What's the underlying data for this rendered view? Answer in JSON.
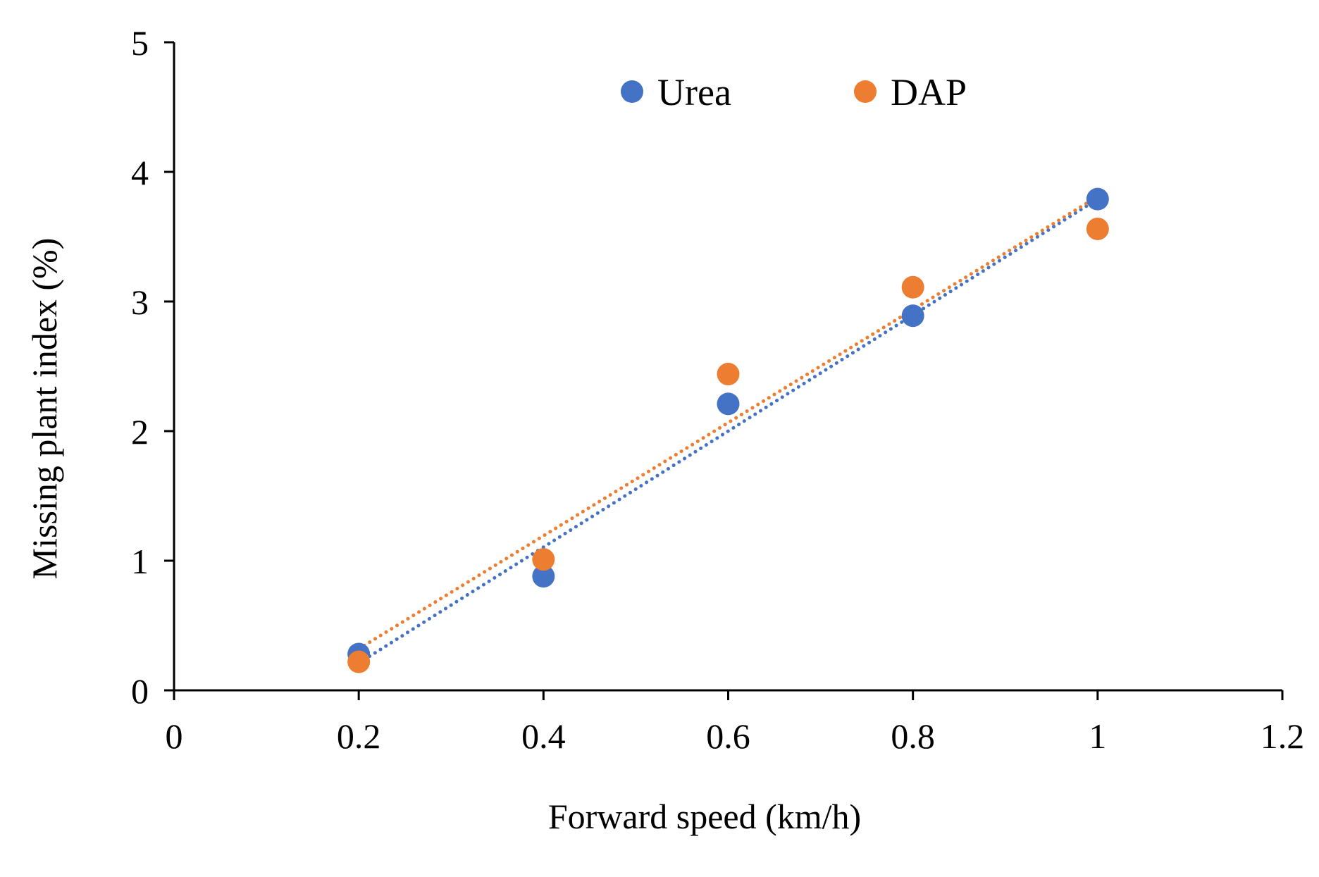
{
  "chart_data": {
    "type": "scatter",
    "title": "",
    "xlabel": "Forward speed (km/h)",
    "ylabel": "Missing plant index (%)",
    "xlim": [
      0,
      1.2
    ],
    "ylim": [
      0,
      5
    ],
    "xticks": [
      0,
      0.2,
      0.4,
      0.6,
      0.8,
      1,
      1.2
    ],
    "xtick_labels": [
      "0",
      "0.2",
      "0.4",
      "0.6",
      "0.8",
      "1",
      "1.2"
    ],
    "yticks": [
      0,
      1,
      2,
      3,
      4,
      5
    ],
    "ytick_labels": [
      "0",
      "1",
      "2",
      "3",
      "4",
      "5"
    ],
    "grid": false,
    "legend_position": "top-center",
    "series": [
      {
        "name": "Urea",
        "color": "#4472C4",
        "x": [
          0.2,
          0.4,
          0.6,
          0.8,
          1.0
        ],
        "y": [
          0.28,
          0.88,
          2.21,
          2.89,
          3.79
        ],
        "trendline": {
          "type": "linear",
          "style": "dotted",
          "from": [
            0.2,
            0.21
          ],
          "to": [
            1.0,
            3.79
          ]
        }
      },
      {
        "name": "DAP",
        "color": "#ED7D31",
        "x": [
          0.2,
          0.4,
          0.6,
          0.8,
          1.0
        ],
        "y": [
          0.22,
          1.01,
          2.44,
          3.11,
          3.56
        ],
        "trendline": {
          "type": "linear",
          "style": "dotted",
          "from": [
            0.2,
            0.32
          ],
          "to": [
            1.0,
            3.81
          ]
        }
      }
    ]
  }
}
